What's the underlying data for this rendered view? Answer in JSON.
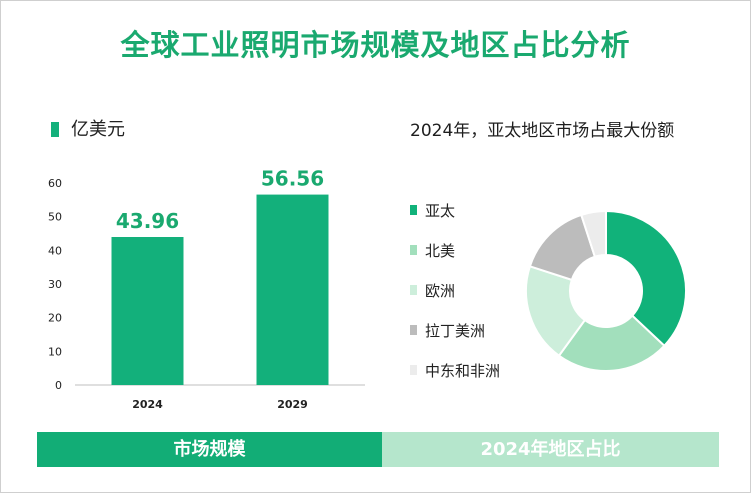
{
  "title": "全球工业照明市场规模及地区占比分析",
  "colors": {
    "accent": "#13b07b",
    "footer_left_bg": "#12ad76",
    "footer_right_bg": "#b5e6cc"
  },
  "chart_data": [
    {
      "type": "bar",
      "unit_label": "亿美元",
      "categories": [
        "2024",
        "2029"
      ],
      "values": [
        43.96,
        56.56
      ],
      "value_labels": [
        "43.96",
        "56.56"
      ],
      "ylim": [
        0,
        60
      ],
      "yticks": [
        0,
        10,
        20,
        30,
        40,
        50,
        60
      ],
      "bar_color": "#13b07b",
      "grid": false
    },
    {
      "type": "pie",
      "donut": true,
      "title": "2024年，亚太地区市场占最大份额",
      "legend_position": "left",
      "labels": [
        "亚太",
        "北美",
        "欧洲",
        "拉丁美洲",
        "中东和非洲"
      ],
      "values": [
        37,
        23,
        20,
        15,
        5
      ],
      "colors": [
        "#11b27a",
        "#a2dfbc",
        "#cdeedb",
        "#bcbcbc",
        "#ececec"
      ]
    }
  ],
  "footer": {
    "left_label": "市场规模",
    "right_label": "2024年地区占比"
  }
}
